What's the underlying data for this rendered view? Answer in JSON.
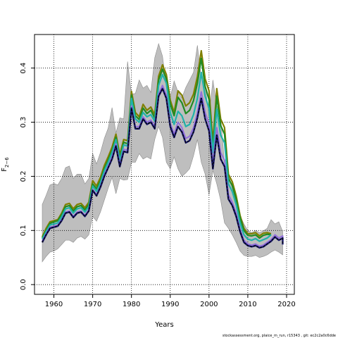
{
  "chart_data": {
    "type": "line",
    "xlabel": "Years",
    "ylabel": "F",
    "ylabel_subscript": "2−6",
    "xlim": [
      1955,
      2022
    ],
    "ylim": [
      -0.018,
      0.462
    ],
    "grid": true,
    "x_ticks": [
      1960,
      1970,
      1980,
      1990,
      2000,
      2010,
      2020
    ],
    "y_ticks": [
      0.0,
      0.1,
      0.2,
      0.3,
      0.4
    ],
    "x_tick_labels": [
      "1960",
      "1970",
      "1980",
      "1990",
      "2000",
      "2010",
      "2020"
    ],
    "y_tick_labels": [
      "0.0",
      "0.1",
      "0.2",
      "0.3",
      "0.4"
    ],
    "x": [
      1957,
      1958,
      1959,
      1960,
      1961,
      1962,
      1963,
      1964,
      1965,
      1966,
      1967,
      1968,
      1969,
      1970,
      1971,
      1972,
      1973,
      1974,
      1975,
      1976,
      1977,
      1978,
      1979,
      1980,
      1981,
      1982,
      1983,
      1984,
      1985,
      1986,
      1987,
      1988,
      1989,
      1990,
      1991,
      1992,
      1993,
      1994,
      1995,
      1996,
      1997,
      1998,
      1999,
      2000,
      2001,
      2002,
      2003,
      2004,
      2005,
      2006,
      2007,
      2008,
      2009,
      2010,
      2011,
      2012,
      2013,
      2014,
      2015,
      2016,
      2017,
      2018,
      2019
    ],
    "band": {
      "color": "#bebebe",
      "lower": [
        0.042,
        0.052,
        0.06,
        0.062,
        0.066,
        0.074,
        0.082,
        0.082,
        0.078,
        0.086,
        0.089,
        0.084,
        0.092,
        0.126,
        0.117,
        0.134,
        0.156,
        0.178,
        0.198,
        0.168,
        0.196,
        0.193,
        0.194,
        0.226,
        0.226,
        0.242,
        0.232,
        0.236,
        0.232,
        0.268,
        0.292,
        0.272,
        0.226,
        0.214,
        0.236,
        0.214,
        0.2,
        0.206,
        0.214,
        0.238,
        0.268,
        0.226,
        0.204,
        0.166,
        0.211,
        0.186,
        0.156,
        0.114,
        0.104,
        0.092,
        0.078,
        0.062,
        0.054,
        0.052,
        0.052,
        0.054,
        0.05,
        0.052,
        0.055,
        0.06,
        0.064,
        0.06,
        0.055
      ],
      "upper": [
        0.148,
        0.165,
        0.184,
        0.187,
        0.184,
        0.196,
        0.216,
        0.219,
        0.196,
        0.204,
        0.204,
        0.186,
        0.196,
        0.242,
        0.223,
        0.244,
        0.27,
        0.289,
        0.327,
        0.28,
        0.308,
        0.306,
        0.412,
        0.352,
        0.353,
        0.378,
        0.363,
        0.368,
        0.355,
        0.419,
        0.445,
        0.422,
        0.368,
        0.346,
        0.376,
        0.356,
        0.345,
        0.364,
        0.378,
        0.392,
        0.442,
        0.382,
        0.37,
        0.31,
        0.378,
        0.33,
        0.31,
        0.224,
        0.204,
        0.178,
        0.154,
        0.128,
        0.112,
        0.1,
        0.096,
        0.1,
        0.096,
        0.099,
        0.104,
        0.12,
        0.112,
        0.116,
        0.098
      ]
    },
    "series": [
      {
        "color": "#808000",
        "dash": "",
        "width": 2.2,
        "values": [
          0.088,
          0.104,
          0.116,
          0.118,
          0.12,
          0.132,
          0.148,
          0.15,
          0.14,
          0.148,
          0.15,
          0.142,
          0.152,
          0.192,
          0.182,
          0.198,
          0.22,
          0.236,
          0.254,
          0.278,
          0.24,
          0.268,
          0.266,
          0.357,
          0.318,
          0.31,
          0.333,
          0.322,
          0.328,
          0.314,
          0.385,
          0.406,
          0.388,
          0.341,
          0.318,
          0.358,
          0.35,
          0.33,
          0.336,
          0.352,
          0.384,
          0.432,
          0.38,
          0.358,
          0.262,
          0.362,
          0.306,
          0.29,
          0.204,
          0.19,
          0.164,
          0.128,
          0.104,
          0.094,
          0.094,
          0.096,
          0.09,
          0.095,
          0.096,
          0.094
        ],
        "x": [
          1957,
          1958,
          1959,
          1960,
          1961,
          1962,
          1963,
          1964,
          1965,
          1966,
          1967,
          1968,
          1969,
          1970,
          1971,
          1972,
          1973,
          1974,
          1975,
          1976,
          1977,
          1978,
          1979,
          1980,
          1981,
          1982,
          1983,
          1984,
          1985,
          1986,
          1987,
          1988,
          1989,
          1990,
          1991,
          1992,
          1993,
          1994,
          1995,
          1996,
          1997,
          1998,
          1999,
          2000,
          2001,
          2002,
          2003,
          2004,
          2005,
          2006,
          2007,
          2008,
          2009,
          2010,
          2011,
          2012,
          2013,
          2014,
          2015,
          2016
        ]
      },
      {
        "color": "#228b22",
        "dash": "",
        "width": 2.2,
        "values": [
          0.086,
          0.1,
          0.113,
          0.116,
          0.118,
          0.129,
          0.144,
          0.146,
          0.136,
          0.144,
          0.146,
          0.138,
          0.148,
          0.186,
          0.177,
          0.192,
          0.214,
          0.23,
          0.248,
          0.272,
          0.234,
          0.263,
          0.26,
          0.35,
          0.312,
          0.305,
          0.326,
          0.316,
          0.322,
          0.308,
          0.378,
          0.398,
          0.38,
          0.334,
          0.312,
          0.346,
          0.336,
          0.316,
          0.322,
          0.34,
          0.372,
          0.418,
          0.366,
          0.342,
          0.252,
          0.348,
          0.294,
          0.278,
          0.196,
          0.183,
          0.158,
          0.124,
          0.1,
          0.091,
          0.09,
          0.092,
          0.086,
          0.091,
          0.093,
          0.092
        ],
        "x": [
          1957,
          1958,
          1959,
          1960,
          1961,
          1962,
          1963,
          1964,
          1965,
          1966,
          1967,
          1968,
          1969,
          1970,
          1971,
          1972,
          1973,
          1974,
          1975,
          1976,
          1977,
          1978,
          1979,
          1980,
          1981,
          1982,
          1983,
          1984,
          1985,
          1986,
          1987,
          1988,
          1989,
          1990,
          1991,
          1992,
          1993,
          1994,
          1995,
          1996,
          1997,
          1998,
          1999,
          2000,
          2001,
          2002,
          2003,
          2004,
          2005,
          2006,
          2007,
          2008,
          2009,
          2010,
          2011,
          2012,
          2013,
          2014,
          2015,
          2016
        ]
      },
      {
        "color": "#20b2aa",
        "dash": "",
        "width": 2.2,
        "values": [
          0.084,
          0.098,
          0.11,
          0.112,
          0.114,
          0.125,
          0.14,
          0.142,
          0.132,
          0.14,
          0.142,
          0.134,
          0.144,
          0.182,
          0.172,
          0.188,
          0.21,
          0.226,
          0.244,
          0.268,
          0.23,
          0.258,
          0.256,
          0.344,
          0.306,
          0.3,
          0.318,
          0.31,
          0.314,
          0.302,
          0.368,
          0.388,
          0.372,
          0.318,
          0.296,
          0.32,
          0.312,
          0.292,
          0.296,
          0.314,
          0.344,
          0.392,
          0.348,
          0.326,
          0.244,
          0.324,
          0.276,
          0.262,
          0.186,
          0.172,
          0.148,
          0.114,
          0.092,
          0.084,
          0.082,
          0.085,
          0.08,
          0.083,
          0.086,
          0.092
        ],
        "x": [
          1957,
          1958,
          1959,
          1960,
          1961,
          1962,
          1963,
          1964,
          1965,
          1966,
          1967,
          1968,
          1969,
          1970,
          1971,
          1972,
          1973,
          1974,
          1975,
          1976,
          1977,
          1978,
          1979,
          1980,
          1981,
          1982,
          1983,
          1984,
          1985,
          1986,
          1987,
          1988,
          1989,
          1990,
          1991,
          1992,
          1993,
          1994,
          1995,
          1996,
          1997,
          1998,
          1999,
          2000,
          2001,
          2002,
          2003,
          2004,
          2005,
          2006,
          2007,
          2008,
          2009,
          2010,
          2011,
          2012,
          2013,
          2014,
          2015,
          2016
        ]
      },
      {
        "color": "#9370db",
        "dash": "",
        "width": 2.0,
        "values": [
          0.08,
          0.094,
          0.106,
          0.108,
          0.11,
          0.12,
          0.134,
          0.136,
          0.126,
          0.134,
          0.136,
          0.128,
          0.138,
          0.176,
          0.166,
          0.182,
          0.203,
          0.219,
          0.236,
          0.26,
          0.222,
          0.25,
          0.248,
          0.33,
          0.292,
          0.292,
          0.31,
          0.3,
          0.304,
          0.292,
          0.352,
          0.368,
          0.35,
          0.298,
          0.278,
          0.3,
          0.29,
          0.27,
          0.274,
          0.29,
          0.318,
          0.356,
          0.318,
          0.296,
          0.224,
          0.29,
          0.244,
          0.23,
          0.166,
          0.152,
          0.132,
          0.102,
          0.082,
          0.075,
          0.073,
          0.075,
          0.071,
          0.073,
          0.078,
          0.083,
          0.092,
          0.086,
          0.09,
          0.078
        ],
        "x": [
          1957,
          1958,
          1959,
          1960,
          1961,
          1962,
          1963,
          1964,
          1965,
          1966,
          1967,
          1968,
          1969,
          1970,
          1971,
          1972,
          1973,
          1974,
          1975,
          1976,
          1977,
          1978,
          1979,
          1980,
          1981,
          1982,
          1983,
          1984,
          1985,
          1986,
          1987,
          1988,
          1989,
          1990,
          1991,
          1992,
          1993,
          1994,
          1995,
          1996,
          1997,
          1998,
          1999,
          2000,
          2001,
          2002,
          2003,
          2004,
          2005,
          2006,
          2007,
          2008,
          2009,
          2010,
          2011,
          2012,
          2013,
          2014,
          2015,
          2016,
          2017,
          2018,
          2019,
          2019
        ]
      },
      {
        "color": "#191970",
        "dash": "",
        "width": 2.4,
        "values": [
          0.078,
          0.092,
          0.104,
          0.106,
          0.108,
          0.118,
          0.132,
          0.134,
          0.124,
          0.132,
          0.134,
          0.126,
          0.136,
          0.174,
          0.164,
          0.18,
          0.2,
          0.216,
          0.232,
          0.256,
          0.218,
          0.246,
          0.244,
          0.326,
          0.288,
          0.288,
          0.306,
          0.296,
          0.3,
          0.288,
          0.348,
          0.362,
          0.344,
          0.292,
          0.272,
          0.292,
          0.282,
          0.262,
          0.266,
          0.282,
          0.308,
          0.344,
          0.306,
          0.284,
          0.214,
          0.276,
          0.232,
          0.218,
          0.158,
          0.146,
          0.126,
          0.098,
          0.078,
          0.072,
          0.07,
          0.072,
          0.068,
          0.07,
          0.075,
          0.08,
          0.088,
          0.082,
          0.086,
          0.074
        ],
        "x": [
          1957,
          1958,
          1959,
          1960,
          1961,
          1962,
          1963,
          1964,
          1965,
          1966,
          1967,
          1968,
          1969,
          1970,
          1971,
          1972,
          1973,
          1974,
          1975,
          1976,
          1977,
          1978,
          1979,
          1980,
          1981,
          1982,
          1983,
          1984,
          1985,
          1986,
          1987,
          1988,
          1989,
          1990,
          1991,
          1992,
          1993,
          1994,
          1995,
          1996,
          1997,
          1998,
          1999,
          2000,
          2001,
          2002,
          2003,
          2004,
          2005,
          2006,
          2007,
          2008,
          2009,
          2010,
          2011,
          2012,
          2013,
          2014,
          2015,
          2016,
          2017,
          2018,
          2019,
          2019
        ]
      },
      {
        "color": "#000000",
        "dash": "3,2",
        "width": 1.2,
        "values": [
          0.078,
          0.092,
          0.104,
          0.106,
          0.108,
          0.118,
          0.132,
          0.134,
          0.124,
          0.132,
          0.134,
          0.126,
          0.136,
          0.174,
          0.164,
          0.18,
          0.2,
          0.216,
          0.232,
          0.256,
          0.218,
          0.246,
          0.244,
          0.326,
          0.288,
          0.288,
          0.306,
          0.296,
          0.3,
          0.288,
          0.348,
          0.362,
          0.344,
          0.292,
          0.272,
          0.292,
          0.282,
          0.262,
          0.266,
          0.282,
          0.308,
          0.344,
          0.306,
          0.284,
          0.214,
          0.276,
          0.232,
          0.218,
          0.158,
          0.146,
          0.126,
          0.098,
          0.078,
          0.072,
          0.07,
          0.072,
          0.068,
          0.07,
          0.075,
          0.08,
          0.088,
          0.082,
          0.086,
          0.074
        ],
        "x": [
          1957,
          1958,
          1959,
          1960,
          1961,
          1962,
          1963,
          1964,
          1965,
          1966,
          1967,
          1968,
          1969,
          1970,
          1971,
          1972,
          1973,
          1974,
          1975,
          1976,
          1977,
          1978,
          1979,
          1980,
          1981,
          1982,
          1983,
          1984,
          1985,
          1986,
          1987,
          1988,
          1989,
          1990,
          1991,
          1992,
          1993,
          1994,
          1995,
          1996,
          1997,
          1998,
          1999,
          2000,
          2001,
          2002,
          2003,
          2004,
          2005,
          2006,
          2007,
          2008,
          2009,
          2010,
          2011,
          2012,
          2013,
          2014,
          2015,
          2016,
          2017,
          2018,
          2019,
          2019
        ]
      }
    ]
  },
  "footer": "stockassessment.org, plaice_m_run, r15343 , git: ec2c2a0c6dde"
}
